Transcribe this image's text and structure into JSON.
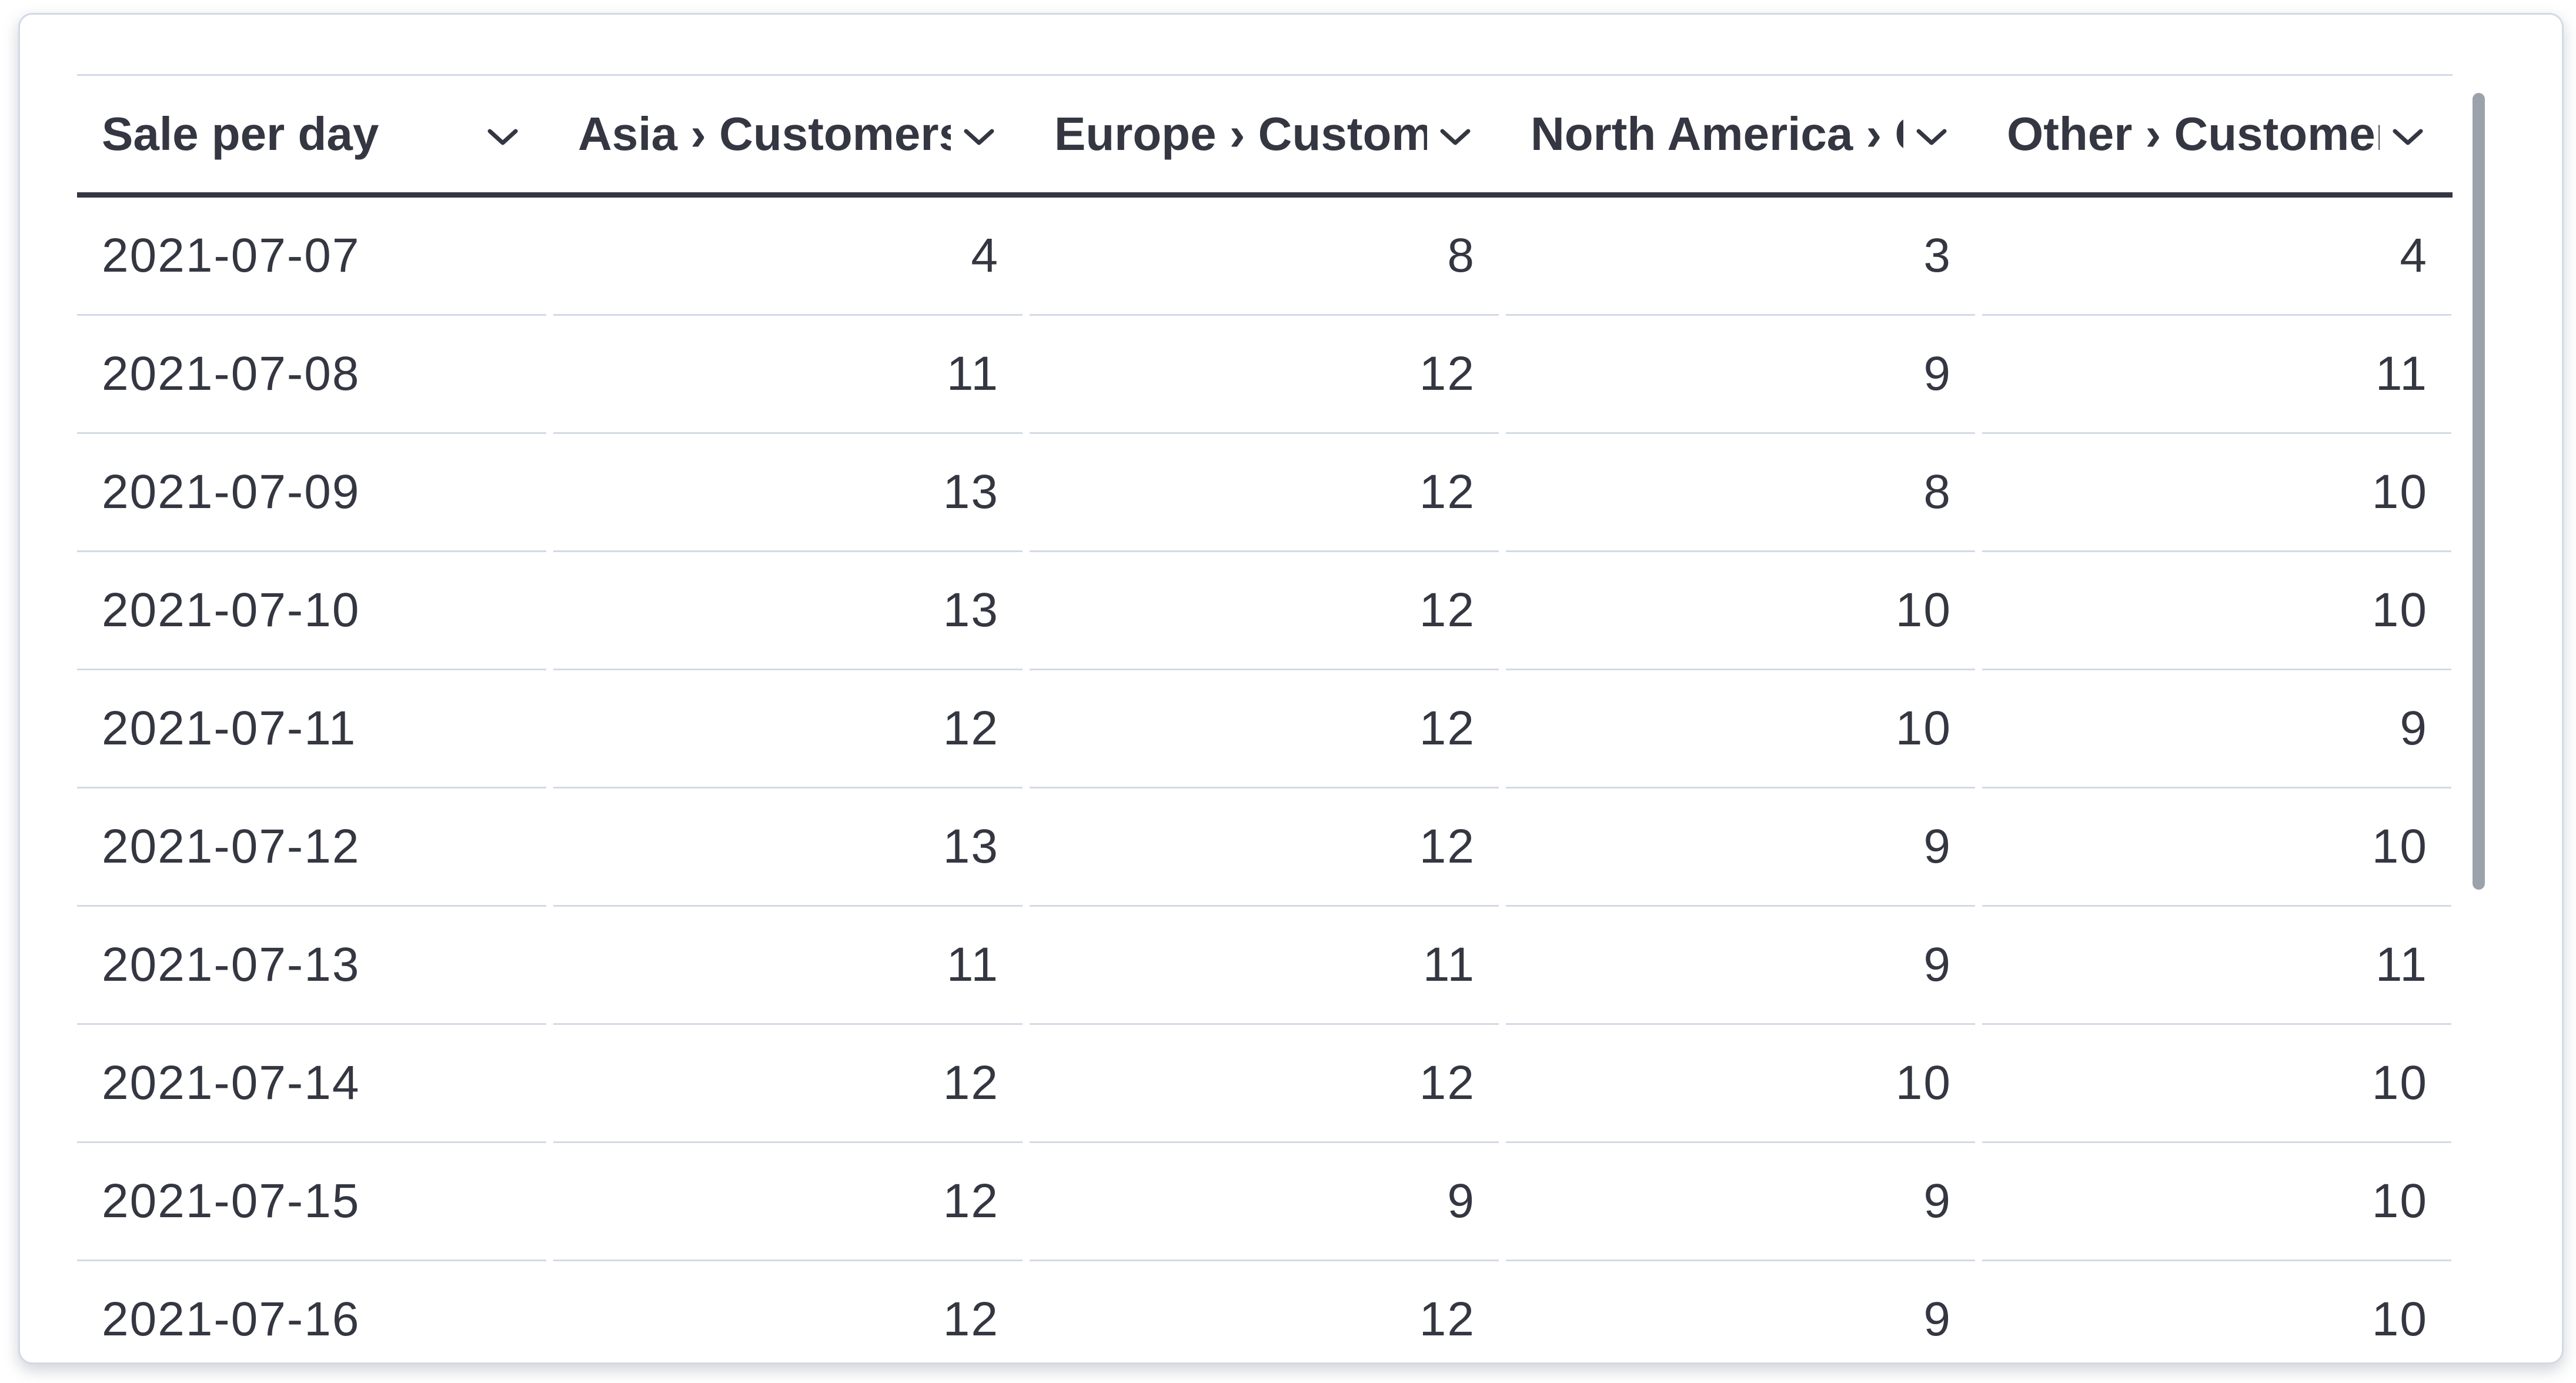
{
  "colors": {
    "text": "#343741",
    "header_rule": "#343741",
    "row_divider": "#d3dae6",
    "panel_border": "#d3dae6",
    "scrollbar_thumb": "#9ca2ac",
    "background": "#ffffff"
  },
  "table": {
    "columns": [
      {
        "id": "date",
        "label": "Sale per day",
        "align": "left"
      },
      {
        "id": "asia",
        "label": "Asia › Customers",
        "align": "right"
      },
      {
        "id": "europe",
        "label": "Europe › Customers",
        "align": "right"
      },
      {
        "id": "north_america",
        "label": "North America › Customers",
        "align": "right"
      },
      {
        "id": "other",
        "label": "Other › Customers",
        "align": "right"
      }
    ],
    "rows": [
      {
        "date": "2021-07-07",
        "values": [
          4,
          8,
          3,
          4
        ]
      },
      {
        "date": "2021-07-08",
        "values": [
          11,
          12,
          9,
          11
        ]
      },
      {
        "date": "2021-07-09",
        "values": [
          13,
          12,
          8,
          10
        ]
      },
      {
        "date": "2021-07-10",
        "values": [
          13,
          12,
          10,
          10
        ]
      },
      {
        "date": "2021-07-11",
        "values": [
          12,
          12,
          10,
          9
        ]
      },
      {
        "date": "2021-07-12",
        "values": [
          13,
          12,
          9,
          10
        ]
      },
      {
        "date": "2021-07-13",
        "values": [
          11,
          11,
          9,
          11
        ]
      },
      {
        "date": "2021-07-14",
        "values": [
          12,
          12,
          10,
          10
        ]
      },
      {
        "date": "2021-07-15",
        "values": [
          12,
          9,
          9,
          10
        ]
      },
      {
        "date": "2021-07-16",
        "values": [
          12,
          12,
          9,
          10
        ]
      }
    ]
  },
  "scrollbar": {
    "orientation": "vertical",
    "visible": true
  }
}
